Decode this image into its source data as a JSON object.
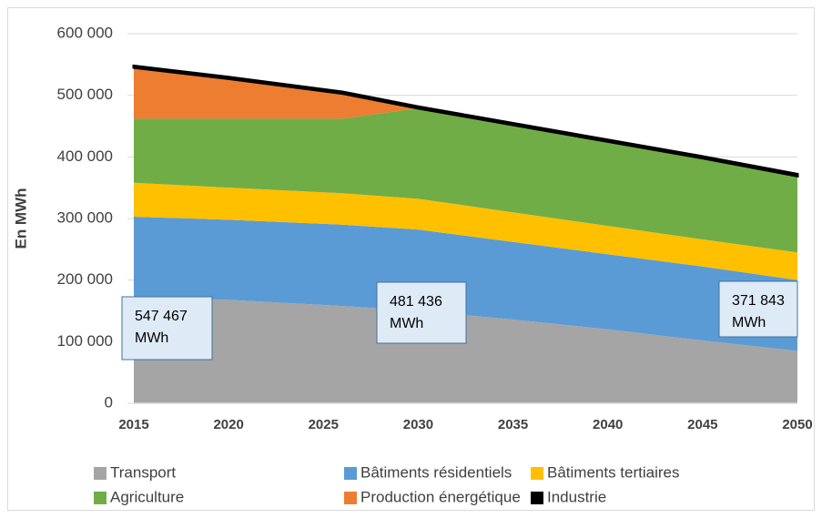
{
  "chart_data": {
    "type": "stacked_area",
    "y_label": "En MWh",
    "x": [
      2015,
      2020,
      2026,
      2030,
      2035,
      2040,
      2045,
      2050
    ],
    "xlim": [
      2015,
      2050
    ],
    "xticks": [
      2015,
      2020,
      2025,
      2030,
      2035,
      2040,
      2045,
      2050
    ],
    "ylim": [
      0,
      600000
    ],
    "yticks": [
      0,
      {
        "value": 100000,
        "label": "100 000"
      },
      {
        "value": 200000,
        "label": "200 000"
      },
      {
        "value": 300000,
        "label": "300 000"
      },
      {
        "value": 400000,
        "label": "400 000"
      },
      {
        "value": 500000,
        "label": "500 000"
      },
      {
        "value": 600000,
        "label": "600 000"
      }
    ],
    "grid": true,
    "series": [
      {
        "name": "Transport",
        "color": "#a5a5a5",
        "values": [
          170000,
          168000,
          158000,
          150000,
          136000,
          120000,
          102000,
          85000
        ]
      },
      {
        "name": "Bâtiments résidentiels",
        "color": "#5b9bd5",
        "values": [
          133000,
          130000,
          132000,
          132000,
          126000,
          122000,
          120000,
          115000
        ]
      },
      {
        "name": "Bâtiments tertiaires",
        "color": "#ffc000",
        "values": [
          55000,
          52000,
          51000,
          50000,
          48000,
          46000,
          44000,
          45000
        ]
      },
      {
        "name": "Agriculture",
        "color": "#70ad47",
        "values": [
          104000,
          112000,
          121000,
          147000,
          142000,
          137000,
          132000,
          124000
        ]
      },
      {
        "name": "Production énergétique",
        "color": "#ed7d31",
        "values": [
          83000,
          65000,
          41000,
          0,
          0,
          0,
          0,
          0
        ]
      },
      {
        "name": "Industrie",
        "color": "#000000",
        "values": [
          2467,
          2500,
          2500,
          2436,
          2500,
          2500,
          2600,
          2843
        ]
      }
    ],
    "annotations": [
      {
        "lines": [
          "547 467",
          "MWh"
        ]
      },
      {
        "lines": [
          "481 436",
          "MWh"
        ]
      },
      {
        "lines": [
          "371 843",
          "MWh"
        ]
      }
    ]
  }
}
